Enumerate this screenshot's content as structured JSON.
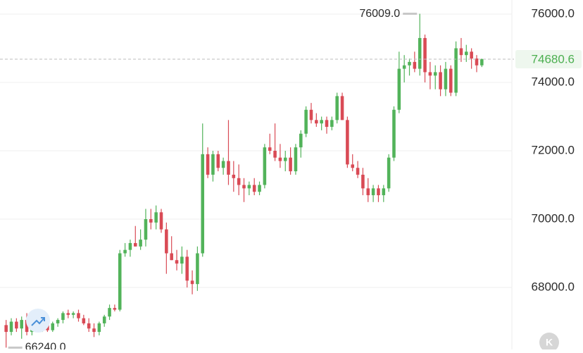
{
  "chart_data": {
    "type": "candlestick",
    "up_color": "#52b35a",
    "down_color": "#d94a55",
    "ylim": [
      66186,
      76412
    ],
    "yticks": [
      {
        "value": 68000,
        "label": "68000.0"
      },
      {
        "value": 70000,
        "label": "70000.0"
      },
      {
        "value": 72000,
        "label": "72000.0"
      },
      {
        "value": 74000,
        "label": "74000.0"
      },
      {
        "value": 76000,
        "label": "76000.0"
      }
    ],
    "grid": true,
    "max_marker": {
      "value": 76009,
      "label": "76009.0"
    },
    "min_marker": {
      "value": 66240,
      "label": "66240.0"
    },
    "last_price": {
      "value": 74680.6,
      "label": "74680.6",
      "color": "#4caf50"
    },
    "open": [
      66900,
      66700,
      67000,
      66800,
      67050,
      66700,
      66850,
      66800,
      66900,
      66750,
      66950,
      67050,
      67250,
      67200,
      67250,
      67100,
      66950,
      66800,
      66700,
      66950,
      67150,
      67400,
      67350,
      69000,
      69100,
      69300,
      69200,
      69400,
      70000,
      69900,
      70200,
      69700,
      69000,
      68800,
      68700,
      68900,
      68200,
      68100,
      69000,
      71900,
      71300,
      71900,
      71500,
      71700,
      71300,
      71200,
      71000,
      70900,
      71000,
      70800,
      71000,
      72100,
      72000,
      71800,
      71700,
      71800,
      71400,
      72100,
      72500,
      73200,
      72900,
      72800,
      72900,
      72700,
      72900,
      73600,
      72900,
      71600,
      71500,
      71300,
      70900,
      70700,
      70900,
      70700,
      70900,
      71800,
      73200,
      74400,
      74500,
      74600,
      74400,
      75300,
      74300,
      74200,
      74300,
      73800,
      74400,
      73700,
      75000,
      74800,
      74900,
      74700,
      74500
    ],
    "high": [
      67050,
      67100,
      67100,
      67150,
      67250,
      66900,
      66950,
      66950,
      67000,
      67000,
      67100,
      67300,
      67350,
      67300,
      67350,
      67200,
      67100,
      66950,
      67000,
      67200,
      67500,
      67500,
      69100,
      69300,
      69400,
      69800,
      69700,
      70300,
      70300,
      70400,
      70300,
      69900,
      69500,
      69100,
      69200,
      69100,
      68500,
      69200,
      72800,
      72100,
      72000,
      72000,
      71800,
      72900,
      71700,
      71600,
      71200,
      71100,
      71200,
      71100,
      72200,
      72500,
      72800,
      72200,
      72000,
      72100,
      72200,
      72600,
      73300,
      73400,
      73100,
      73000,
      73000,
      73000,
      73700,
      73700,
      73000,
      71900,
      71700,
      71500,
      71200,
      71000,
      71000,
      71000,
      71900,
      73300,
      74900,
      74800,
      74700,
      74900,
      76009,
      75400,
      74600,
      74500,
      74500,
      74600,
      74500,
      75200,
      75300,
      75100,
      75000,
      74800,
      74700
    ],
    "low": [
      66240,
      66600,
      66700,
      66500,
      66600,
      66600,
      66750,
      66700,
      66700,
      66700,
      66850,
      66950,
      67100,
      67100,
      67000,
      66900,
      66700,
      66550,
      66600,
      66850,
      67050,
      67300,
      67300,
      68900,
      68900,
      69200,
      69100,
      69200,
      69700,
      69700,
      69600,
      68400,
      68800,
      68500,
      68400,
      68000,
      67800,
      67900,
      68900,
      71200,
      71100,
      71400,
      71300,
      71000,
      70800,
      70700,
      70500,
      70700,
      70700,
      70700,
      70900,
      71900,
      71700,
      71500,
      71400,
      71300,
      71300,
      71800,
      72400,
      72800,
      72700,
      72600,
      72500,
      72600,
      72800,
      72900,
      71500,
      71400,
      71200,
      70700,
      70500,
      70500,
      70500,
      70500,
      70800,
      71700,
      73100,
      74000,
      74200,
      74300,
      74200,
      74000,
      73800,
      73800,
      73600,
      73600,
      73600,
      73600,
      74600,
      74600,
      74400,
      74300,
      74450
    ],
    "close": [
      66700,
      67000,
      66800,
      67050,
      66700,
      66850,
      66800,
      66900,
      66750,
      66950,
      67050,
      67250,
      67200,
      67250,
      67100,
      66950,
      66800,
      66700,
      66950,
      67150,
      67400,
      67350,
      69000,
      69100,
      69300,
      69200,
      69400,
      70000,
      69900,
      70200,
      69700,
      69000,
      68800,
      68700,
      68900,
      68200,
      68100,
      69000,
      71900,
      71300,
      71900,
      71500,
      71700,
      71300,
      71200,
      71000,
      70900,
      71000,
      70800,
      71000,
      72100,
      72000,
      71800,
      71700,
      71800,
      71400,
      72100,
      72500,
      73200,
      72900,
      72800,
      72900,
      72700,
      72900,
      73600,
      72900,
      71600,
      71500,
      71300,
      70900,
      70700,
      70900,
      70700,
      70900,
      71800,
      73200,
      74400,
      74500,
      74600,
      74400,
      75300,
      74300,
      74200,
      74300,
      73800,
      74400,
      73700,
      75000,
      74800,
      74900,
      74700,
      74500,
      74680.6
    ]
  },
  "toolbar": {
    "button": "K"
  }
}
